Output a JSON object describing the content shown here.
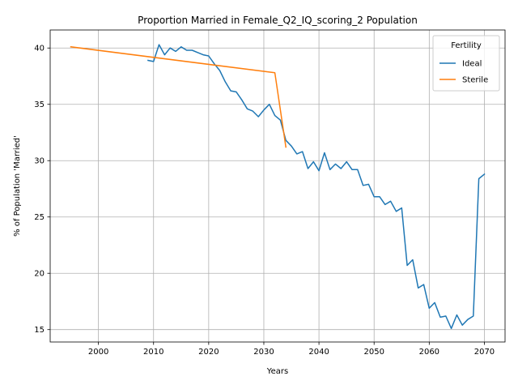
{
  "chart_data": {
    "type": "line",
    "title": "Proportion Married in Female_Q2_IQ_scoring_2 Population",
    "xlabel": "Years",
    "ylabel": "% of Population 'Married'",
    "xlim": [
      1991.25,
      2073.75
    ],
    "ylim": [
      13.9,
      41.6
    ],
    "xticks": [
      2000,
      2010,
      2020,
      2030,
      2040,
      2050,
      2060,
      2070
    ],
    "yticks": [
      15,
      20,
      25,
      30,
      35,
      40
    ],
    "grid": true,
    "legend": {
      "title": "Fertility",
      "position": "top-right"
    },
    "series": [
      {
        "name": "Ideal",
        "color": "#1f77b4",
        "x": [
          2009,
          2010,
          2011,
          2012,
          2013,
          2014,
          2015,
          2016,
          2017,
          2018,
          2019,
          2020,
          2021,
          2022,
          2023,
          2024,
          2025,
          2026,
          2027,
          2028,
          2029,
          2030,
          2031,
          2032,
          2033,
          2034,
          2035,
          2036,
          2037,
          2038,
          2039,
          2040,
          2041,
          2042,
          2043,
          2044,
          2045,
          2046,
          2047,
          2048,
          2049,
          2050,
          2051,
          2052,
          2053,
          2054,
          2055,
          2056,
          2057,
          2058,
          2059,
          2060,
          2061,
          2062,
          2063,
          2064,
          2065,
          2066,
          2067,
          2068,
          2069,
          2070
        ],
        "y": [
          38.9,
          38.8,
          40.3,
          39.4,
          40.0,
          39.7,
          40.1,
          39.8,
          39.8,
          39.6,
          39.4,
          39.3,
          38.6,
          38.0,
          37.0,
          36.2,
          36.1,
          35.4,
          34.6,
          34.4,
          33.9,
          34.5,
          35.0,
          34.0,
          33.6,
          31.8,
          31.3,
          30.6,
          30.8,
          29.3,
          29.9,
          29.1,
          30.7,
          29.2,
          29.7,
          29.3,
          29.9,
          29.2,
          29.2,
          27.8,
          27.9,
          26.8,
          26.8,
          26.1,
          26.4,
          25.5,
          25.8,
          20.7,
          21.2,
          18.7,
          19.0,
          16.9,
          17.4,
          16.1,
          16.2,
          15.1,
          16.3,
          15.4,
          15.9,
          16.2,
          28.4,
          28.8
        ]
      },
      {
        "name": "Sterile",
        "color": "#ff7f0e",
        "x": [
          1995,
          2032,
          2034
        ],
        "y": [
          40.1,
          37.8,
          31.2
        ]
      }
    ]
  }
}
